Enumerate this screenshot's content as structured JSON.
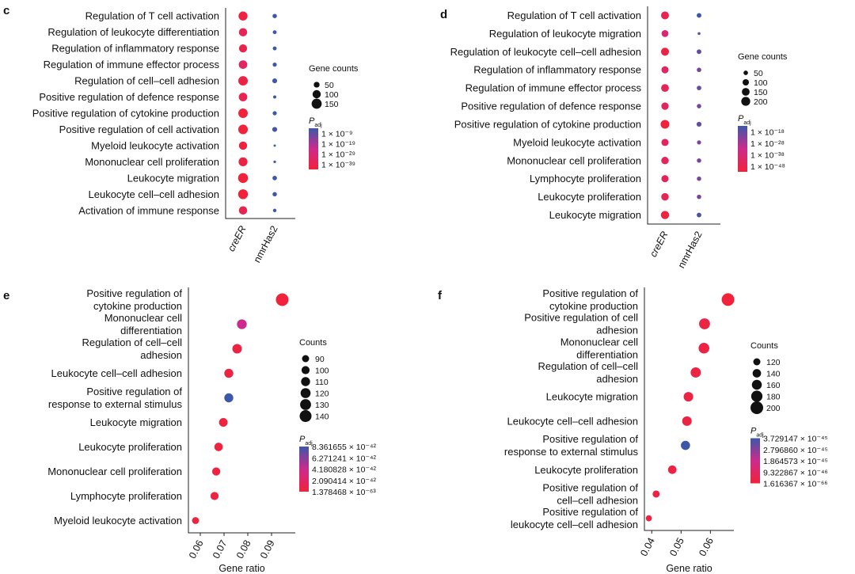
{
  "chart_data": [
    {
      "panel": "c",
      "type": "scatter",
      "plot": "dot",
      "categories": [
        "creER",
        "nmrHas2"
      ],
      "terms": [
        "Regulation of T cell activation",
        "Regulation of leukocyte differentiation",
        "Regulation of inflammatory response",
        "Regulation of immune effector process",
        "Regulation of cell–cell adhesion",
        "Positive regulation of defence response",
        "Positive regulation of cytokine production",
        "Positive regulation of cell activation",
        "Myeloid leukocyte activation",
        "Mononuclear cell proliferation",
        "Leukocyte migration",
        "Leukocyte cell–cell adhesion",
        "Activation of immune response"
      ],
      "series": [
        {
          "name": "creER",
          "counts": [
            120,
            102,
            97,
            108,
            132,
            108,
            132,
            135,
            100,
            118,
            145,
            142,
            103
          ],
          "p_exp": [
            -38,
            -34,
            -36,
            -32,
            -37,
            -35,
            -40,
            -39,
            -38,
            -37,
            -40,
            -40,
            -35
          ]
        },
        {
          "name": "nmrHas2",
          "counts": [
            28,
            22,
            22,
            25,
            34,
            15,
            25,
            36,
            8,
            10,
            30,
            28,
            18
          ],
          "p_exp": [
            -8,
            -9,
            -8,
            -8,
            -9,
            -8,
            -9,
            -10,
            -8,
            -8,
            -9,
            -9,
            -8
          ]
        }
      ],
      "size_legend": {
        "title": "Gene counts",
        "labels": [
          "50",
          "100",
          "150"
        ],
        "values": [
          50,
          100,
          150
        ]
      },
      "color_legend": {
        "title": "P",
        "sub": "adj",
        "labels": [
          "1 × 10⁻⁹",
          "1 × 10⁻¹⁹",
          "1 × 10⁻²⁹",
          "1 × 10⁻³⁹"
        ],
        "range": [
          -39,
          -9
        ]
      }
    },
    {
      "panel": "d",
      "type": "scatter",
      "plot": "dot",
      "categories": [
        "creER",
        "nmrHas2"
      ],
      "terms": [
        "Regulation of T cell activation",
        "Regulation of leukocyte migration",
        "Regulation of leukocyte cell–cell adhesion",
        "Regulation of inflammatory response",
        "Regulation of immune effector process",
        "Positive regulation of defence response",
        "Positive regulation of cytokine production",
        "Myeloid leukocyte activation",
        "Mononuclear cell proliferation",
        "Lymphocyte proliferation",
        "Leukocyte proliferation",
        "Leukocyte migration"
      ],
      "series": [
        {
          "name": "creER",
          "counts": [
            155,
            120,
            160,
            128,
            150,
            135,
            190,
            130,
            140,
            130,
            140,
            170
          ],
          "p_exp": [
            -44,
            -38,
            -46,
            -40,
            -43,
            -41,
            -48,
            -41,
            -42,
            -42,
            -43,
            -47
          ]
        },
        {
          "name": "nmrHas2",
          "counts": [
            55,
            20,
            55,
            50,
            52,
            48,
            60,
            42,
            48,
            48,
            48,
            55
          ],
          "p_exp": [
            -18,
            -20,
            -22,
            -24,
            -22,
            -24,
            -22,
            -25,
            -24,
            -24,
            -24,
            -20
          ]
        }
      ],
      "size_legend": {
        "title": "Gene counts",
        "labels": [
          "50",
          "100",
          "150",
          "200"
        ],
        "values": [
          50,
          100,
          150,
          200
        ]
      },
      "color_legend": {
        "title": "P",
        "sub": "adj",
        "labels": [
          "1 × 10⁻¹⁸",
          "1 × 10⁻²⁸",
          "1 × 10⁻³⁸",
          "1 × 10⁻⁴⁸"
        ],
        "range": [
          -48,
          -18
        ]
      }
    },
    {
      "panel": "e",
      "type": "scatter",
      "plot": "ratio",
      "xlabel": "Gene ratio",
      "xlim": [
        0.055,
        0.1
      ],
      "xticks": [
        0.06,
        0.07,
        0.08,
        0.09
      ],
      "xtick_labels": [
        "0.06",
        "0.07",
        "0.08",
        "0.09"
      ],
      "terms": [
        "Positive regulation of\ncytokine production",
        "Mononuclear cell\ndifferentiation",
        "Regulation of cell–cell\nadhesion",
        "Leukocyte cell–cell adhesion",
        "Positive regulation of\nresponse to external stimulus",
        "Leukocyte migration",
        "Leukocyte proliferation",
        "Mononuclear cell proliferation",
        "Lymphocyte proliferation",
        "Myeloid leukocyte activation"
      ],
      "x": [
        0.0945,
        0.0775,
        0.0755,
        0.072,
        0.072,
        0.0697,
        0.0677,
        0.0667,
        0.066,
        0.058
      ],
      "counts": [
        148,
        118,
        115,
        110,
        110,
        106,
        104,
        101,
        100,
        88
      ],
      "p_value": [
        0.0,
        0.5,
        0.05,
        0.05,
        1.0,
        0.03,
        0.03,
        0.03,
        0.03,
        0.03
      ],
      "size_legend": {
        "title": "Counts",
        "labels": [
          "90",
          "100",
          "110",
          "120",
          "130",
          "140"
        ],
        "values": [
          90,
          100,
          110,
          120,
          130,
          140
        ]
      },
      "color_legend": {
        "title": "P",
        "sub": "adj",
        "labels": [
          "8.361655 × 10⁻⁴²",
          "6.271241 × 10⁻⁴²",
          "4.180828 × 10⁻⁴²",
          "2.090414 × 10⁻⁴²",
          "1.378468 × 10⁻⁶³"
        ]
      }
    },
    {
      "panel": "f",
      "type": "scatter",
      "plot": "ratio",
      "xlabel": "Gene ratio",
      "xlim": [
        0.0375,
        0.068
      ],
      "xticks": [
        0.04,
        0.05,
        0.06
      ],
      "xtick_labels": [
        "0.04",
        "0.05",
        "0.06"
      ],
      "terms": [
        "Positive regulation of\ncytokine production",
        "Positive regulation of cell\nadhesion",
        "Mononuclear cell\ndifferentiation",
        "Regulation of cell–cell\nadhesion",
        "Leukocyte migration",
        "Leukocyte cell–cell adhesion",
        "Positive regulation of\nresponse to external stimulus",
        "Leukocyte proliferation",
        "Positive regulation of\ncell–cell adhesion",
        "Positive regulation of\nleukocyte cell–cell adhesion"
      ],
      "x": [
        0.066,
        0.058,
        0.0578,
        0.055,
        0.0525,
        0.052,
        0.0515,
        0.047,
        0.0415,
        0.039
      ],
      "counts": [
        200,
        175,
        172,
        165,
        155,
        155,
        150,
        140,
        120,
        105
      ],
      "p_value": [
        0.0,
        0.05,
        0.05,
        0.05,
        0.05,
        0.05,
        1.0,
        0.05,
        0.05,
        0.05
      ],
      "size_legend": {
        "title": "Counts",
        "labels": [
          "120",
          "140",
          "160",
          "180",
          "200"
        ],
        "values": [
          120,
          140,
          160,
          180,
          200
        ]
      },
      "color_legend": {
        "title": "P",
        "sub": "adj",
        "labels": [
          "3.729147 × 10⁻⁴⁵",
          "2.796860 × 10⁻⁴⁵",
          "1.864573 × 10⁻⁴⁵",
          "9.322867 × 10⁻⁴⁶",
          "1.616367 × 10⁻⁶⁶"
        ]
      }
    }
  ],
  "colors": {
    "low": "#f0233b",
    "mid": "#cc2a8c",
    "high": "#3d58a8"
  }
}
